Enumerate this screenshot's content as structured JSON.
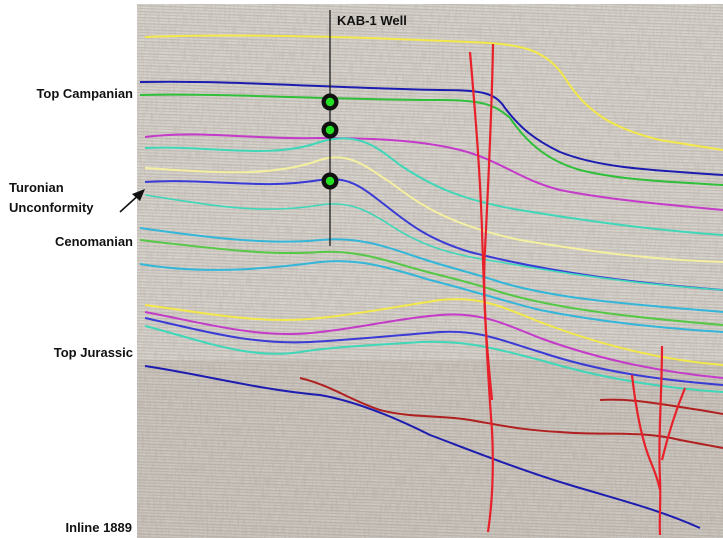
{
  "well": {
    "name": "KAB-1 Well"
  },
  "labels": {
    "top_campanian": "Top Campanian",
    "turonian_1": "Turonian",
    "turonian_2": "Unconformity",
    "cenomanian": "Cenomanian",
    "top_jurassic": "Top Jurassic",
    "inline": "Inline 1889"
  },
  "colors": {
    "yellow": "#f2e84a",
    "navy": "#1c1cb0",
    "green": "#2fbf3a",
    "magenta": "#c43ac9",
    "teal": "#3fd7b8",
    "cream": "#f5f0a0",
    "blue": "#3a3ad6",
    "cyan": "#33b6d8",
    "lime": "#55c845",
    "red": "#e02020",
    "darkred": "#b02020",
    "fault": "#e8202a",
    "well_marker_fill": "#22e022"
  }
}
